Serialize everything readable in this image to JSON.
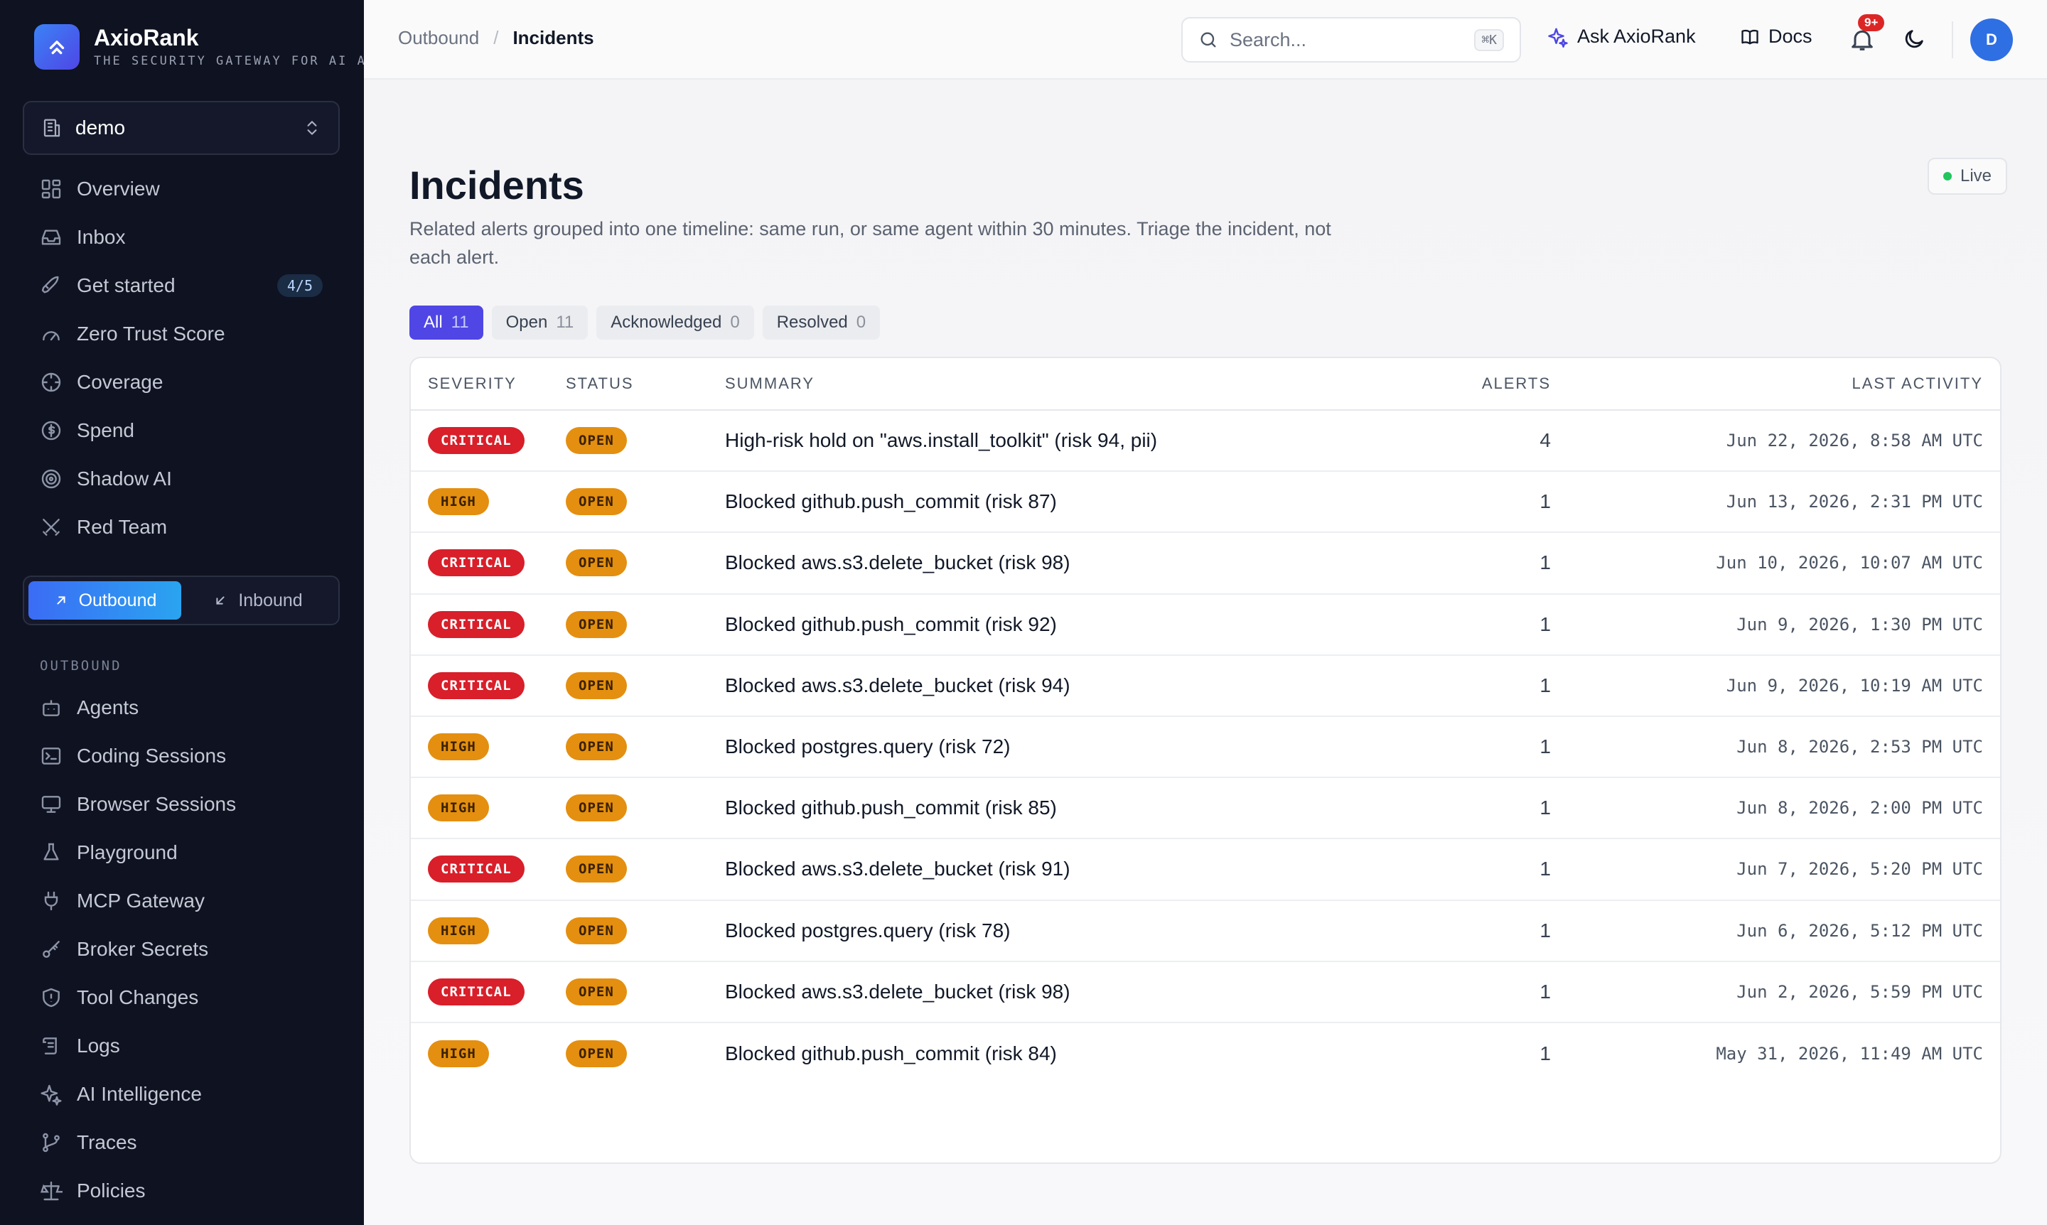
{
  "app": {
    "name": "AxioRank",
    "tagline": "THE SECURITY GATEWAY FOR AI AGENTS"
  },
  "org": {
    "name": "demo"
  },
  "sidebar": {
    "nav": [
      {
        "label": "Overview",
        "icon": "grid-icon"
      },
      {
        "label": "Inbox",
        "icon": "inbox-icon"
      },
      {
        "label": "Get started",
        "icon": "rocket-icon",
        "badge": "4/5"
      },
      {
        "label": "Zero Trust Score",
        "icon": "gauge-icon"
      },
      {
        "label": "Coverage",
        "icon": "target-icon"
      },
      {
        "label": "Spend",
        "icon": "dollar-icon"
      },
      {
        "label": "Shadow AI",
        "icon": "radar-icon"
      },
      {
        "label": "Red Team",
        "icon": "swords-icon"
      }
    ],
    "toggle": {
      "outbound": "Outbound",
      "inbound": "Inbound",
      "selected": "Outbound"
    },
    "section_label": "OUTBOUND",
    "outbound_nav": [
      {
        "label": "Agents",
        "icon": "bot-icon"
      },
      {
        "label": "Coding Sessions",
        "icon": "terminal-icon"
      },
      {
        "label": "Browser Sessions",
        "icon": "monitor-icon"
      },
      {
        "label": "Playground",
        "icon": "flask-icon"
      },
      {
        "label": "MCP Gateway",
        "icon": "plug-icon"
      },
      {
        "label": "Broker Secrets",
        "icon": "key-icon"
      },
      {
        "label": "Tool Changes",
        "icon": "shield-icon"
      },
      {
        "label": "Logs",
        "icon": "scroll-icon"
      },
      {
        "label": "AI Intelligence",
        "icon": "sparkles-icon"
      },
      {
        "label": "Traces",
        "icon": "git-branch-icon"
      },
      {
        "label": "Policies",
        "icon": "scale-icon"
      }
    ]
  },
  "header": {
    "breadcrumb": [
      "Outbound",
      "Incidents"
    ],
    "search_placeholder": "Search...",
    "search_shortcut": "⌘K",
    "ask_label": "Ask AxioRank",
    "docs_label": "Docs",
    "notifications_badge": "9+",
    "avatar_initial": "D"
  },
  "page": {
    "title": "Incidents",
    "description": "Related alerts grouped into one timeline: same run, or same agent within 30 minutes. Triage the incident, not each alert.",
    "live_label": "Live",
    "filters": [
      {
        "label": "All",
        "count": "11",
        "active": true
      },
      {
        "label": "Open",
        "count": "11",
        "active": false
      },
      {
        "label": "Acknowledged",
        "count": "0",
        "active": false
      },
      {
        "label": "Resolved",
        "count": "0",
        "active": false
      }
    ]
  },
  "table": {
    "columns": {
      "severity": "SEVERITY",
      "status": "STATUS",
      "summary": "SUMMARY",
      "alerts": "ALERTS",
      "last_activity": "LAST ACTIVITY"
    },
    "rows": [
      {
        "severity": "CRITICAL",
        "status": "OPEN",
        "summary": "High-risk hold on \"aws.install_toolkit\" (risk 94, pii)",
        "alerts": "4",
        "last": "Jun 22, 2026, 8:58 AM UTC"
      },
      {
        "severity": "HIGH",
        "status": "OPEN",
        "summary": "Blocked github.push_commit (risk 87)",
        "alerts": "1",
        "last": "Jun 13, 2026, 2:31 PM UTC"
      },
      {
        "severity": "CRITICAL",
        "status": "OPEN",
        "summary": "Blocked aws.s3.delete_bucket (risk 98)",
        "alerts": "1",
        "last": "Jun 10, 2026, 10:07 AM UTC"
      },
      {
        "severity": "CRITICAL",
        "status": "OPEN",
        "summary": "Blocked github.push_commit (risk 92)",
        "alerts": "1",
        "last": "Jun 9, 2026, 1:30 PM UTC"
      },
      {
        "severity": "CRITICAL",
        "status": "OPEN",
        "summary": "Blocked aws.s3.delete_bucket (risk 94)",
        "alerts": "1",
        "last": "Jun 9, 2026, 10:19 AM UTC"
      },
      {
        "severity": "HIGH",
        "status": "OPEN",
        "summary": "Blocked postgres.query (risk 72)",
        "alerts": "1",
        "last": "Jun 8, 2026, 2:53 PM UTC"
      },
      {
        "severity": "HIGH",
        "status": "OPEN",
        "summary": "Blocked github.push_commit (risk 85)",
        "alerts": "1",
        "last": "Jun 8, 2026, 2:00 PM UTC"
      },
      {
        "severity": "CRITICAL",
        "status": "OPEN",
        "summary": "Blocked aws.s3.delete_bucket (risk 91)",
        "alerts": "1",
        "last": "Jun 7, 2026, 5:20 PM UTC"
      },
      {
        "severity": "HIGH",
        "status": "OPEN",
        "summary": "Blocked postgres.query (risk 78)",
        "alerts": "1",
        "last": "Jun 6, 2026, 5:12 PM UTC"
      },
      {
        "severity": "CRITICAL",
        "status": "OPEN",
        "summary": "Blocked aws.s3.delete_bucket (risk 98)",
        "alerts": "1",
        "last": "Jun 2, 2026, 5:59 PM UTC"
      },
      {
        "severity": "HIGH",
        "status": "OPEN",
        "summary": "Blocked github.push_commit (risk 84)",
        "alerts": "1",
        "last": "May 31, 2026, 11:49 AM UTC"
      }
    ]
  }
}
